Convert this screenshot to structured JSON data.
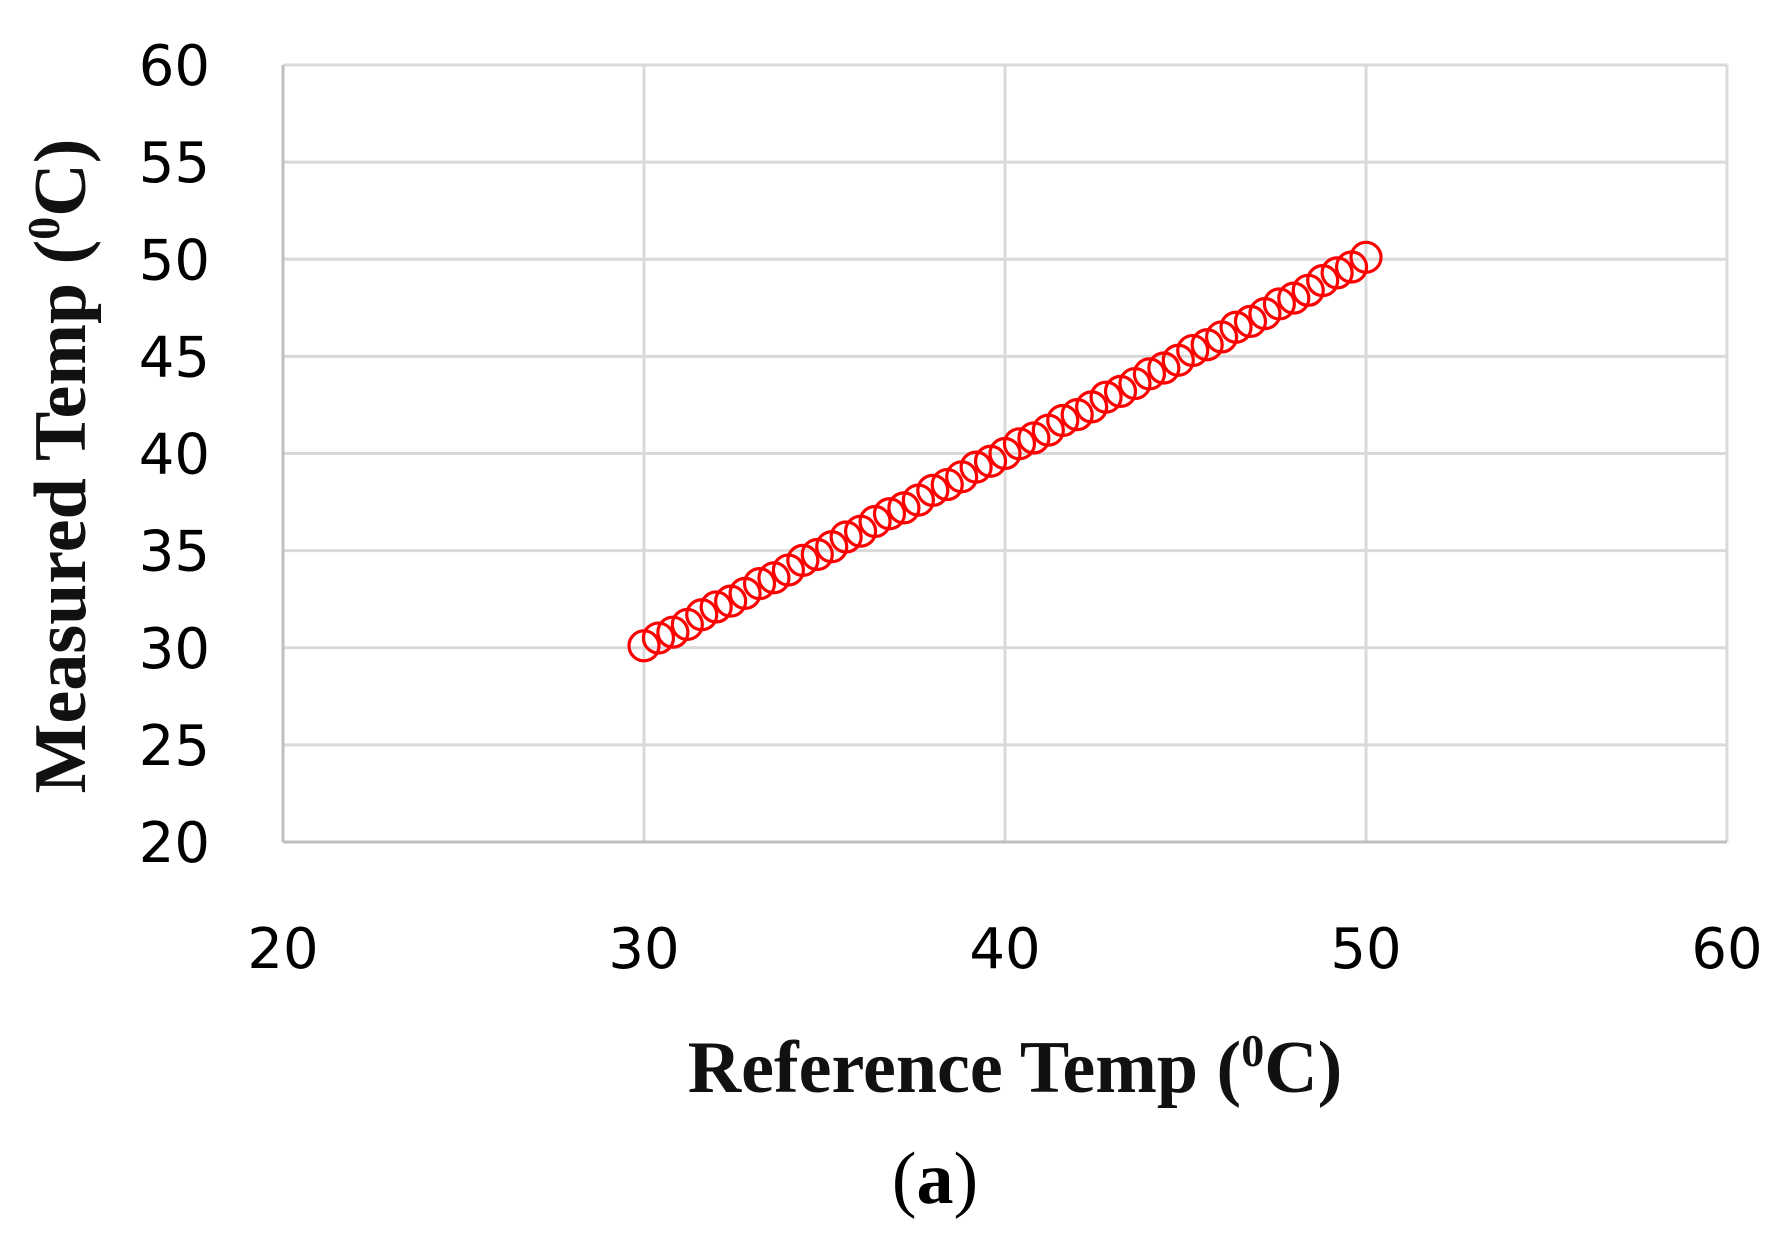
{
  "chart_data": {
    "type": "scatter",
    "title": "",
    "xlabel": {
      "prefix": "Reference Temp (",
      "superscript": "0",
      "suffix": "C)"
    },
    "ylabel": {
      "prefix": "Measured Temp (",
      "superscript": "0",
      "suffix": "C)"
    },
    "xlim": [
      20,
      60
    ],
    "ylim": [
      20,
      60
    ],
    "xticks": [
      20,
      30,
      40,
      50,
      60
    ],
    "yticks": [
      20,
      25,
      30,
      35,
      40,
      45,
      50,
      55,
      60
    ],
    "grid": true,
    "legend": "none",
    "marker": "open-circle",
    "series": [
      {
        "color": "#ff0000",
        "x": [
          30.0,
          30.4,
          30.8,
          31.2,
          31.6,
          32.0,
          32.4,
          32.8,
          33.2,
          33.6,
          34.0,
          34.4,
          34.8,
          35.2,
          35.6,
          36.0,
          36.4,
          36.8,
          37.2,
          37.6,
          38.0,
          38.4,
          38.8,
          39.2,
          39.6,
          40.0,
          40.4,
          40.8,
          41.2,
          41.6,
          42.0,
          42.4,
          42.8,
          43.2,
          43.6,
          44.0,
          44.4,
          44.8,
          45.2,
          45.6,
          46.0,
          46.4,
          46.8,
          47.2,
          47.6,
          48.0,
          48.4,
          48.8,
          49.2,
          49.6,
          50.0
        ],
        "y": [
          30.1,
          30.5,
          30.8,
          31.2,
          31.7,
          32.1,
          32.4,
          32.8,
          33.3,
          33.6,
          34.0,
          34.5,
          34.8,
          35.2,
          35.7,
          36.0,
          36.5,
          36.9,
          37.2,
          37.6,
          38.1,
          38.4,
          38.8,
          39.3,
          39.6,
          40.0,
          40.5,
          40.8,
          41.2,
          41.7,
          42.0,
          42.4,
          42.9,
          43.2,
          43.6,
          44.1,
          44.4,
          44.8,
          45.3,
          45.6,
          46.0,
          46.5,
          46.8,
          47.2,
          47.7,
          48.0,
          48.4,
          48.9,
          49.3,
          49.6,
          50.1
        ]
      }
    ]
  },
  "panel": {
    "open": "(",
    "letter": "a",
    "close": ")"
  }
}
